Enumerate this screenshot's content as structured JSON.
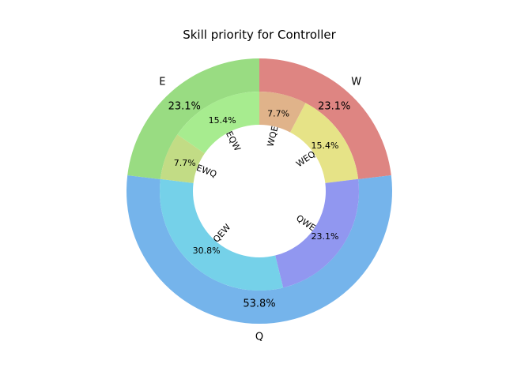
{
  "chart_data": {
    "type": "pie",
    "title": "Skill priority for Controller",
    "outer_ring": {
      "labels": [
        "W",
        "Q",
        "E"
      ],
      "values": [
        23.1,
        53.8,
        23.1
      ],
      "pct_labels": [
        "23.1%",
        "53.8%",
        "23.1%"
      ],
      "colors": [
        "#de8582",
        "#75b4eb",
        "#99dc82"
      ]
    },
    "inner_ring": {
      "labels": [
        "WQE",
        "WEQ",
        "QWE",
        "QEW",
        "EWQ",
        "EQW"
      ],
      "values": [
        7.7,
        15.4,
        23.1,
        30.8,
        7.7,
        15.4
      ],
      "pct_labels": [
        "7.7%",
        "15.4%",
        "23.1%",
        "30.8%",
        "7.7%",
        "15.4%"
      ],
      "colors": [
        "#e0b38a",
        "#e6e387",
        "#9197f0",
        "#75d1e9",
        "#c2dc85",
        "#a7ec8f"
      ]
    }
  }
}
